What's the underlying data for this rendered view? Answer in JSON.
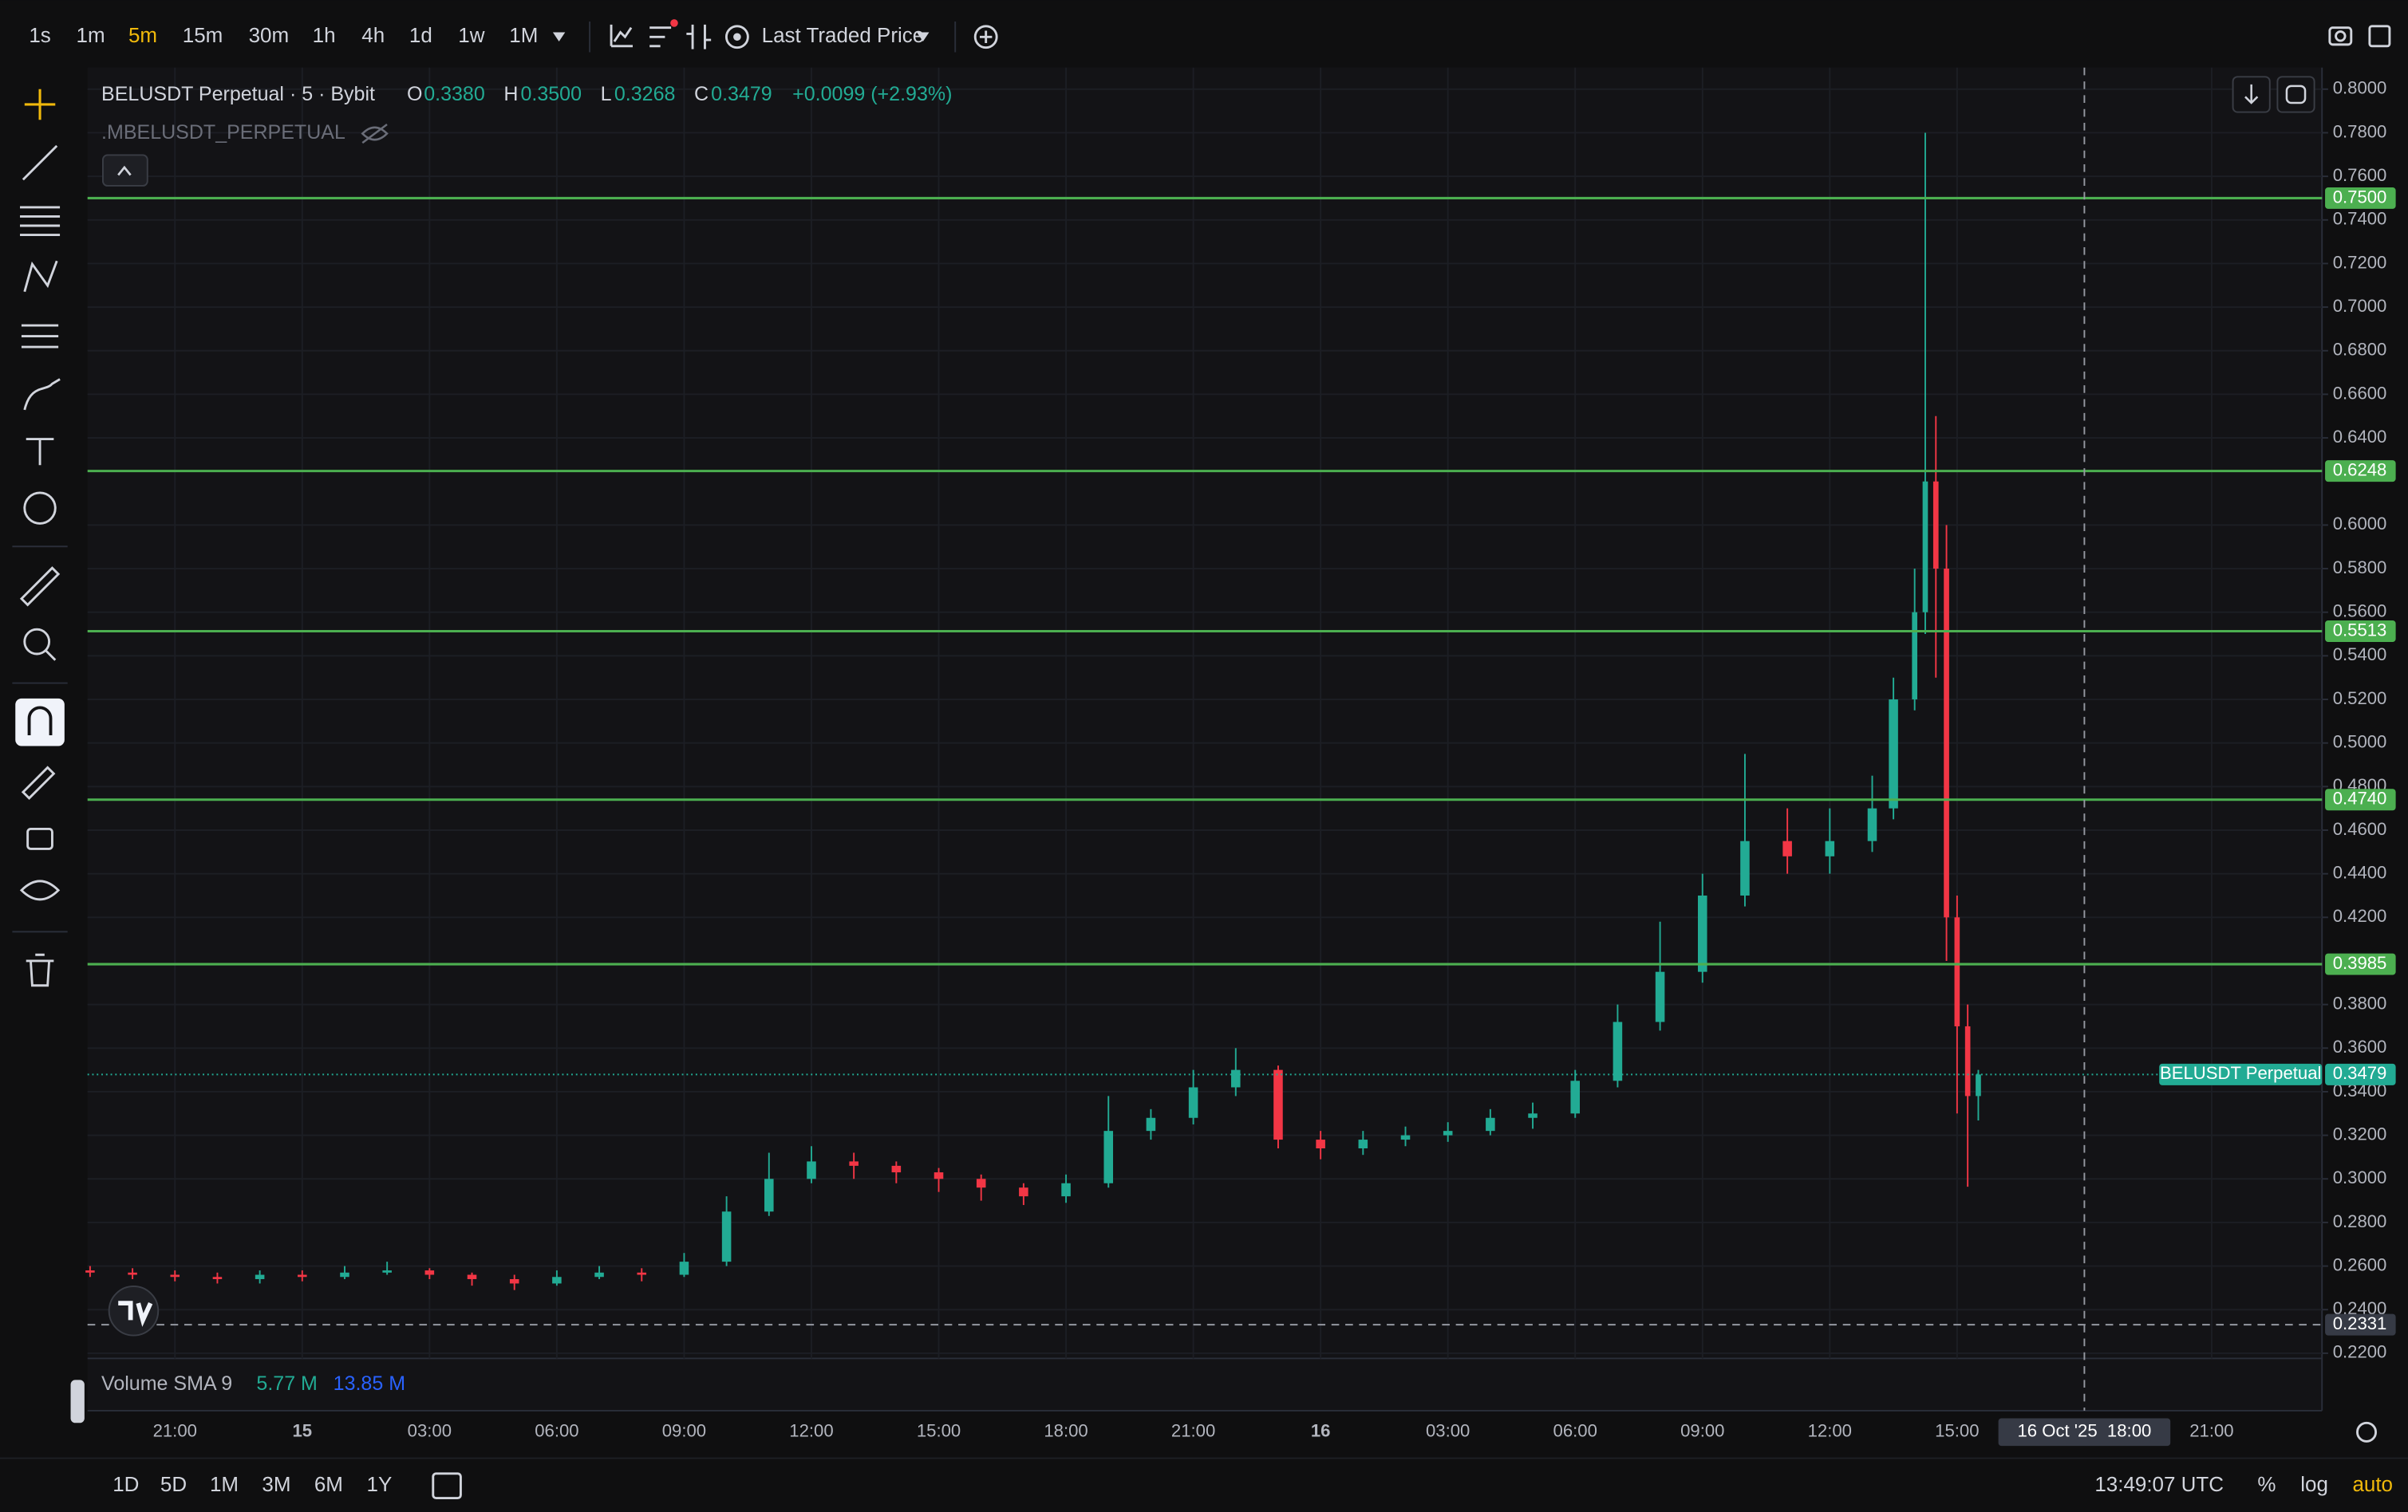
{
  "ui": {
    "intervals": [
      "1s",
      "1m",
      "5m",
      "15m",
      "30m",
      "1h",
      "4h",
      "1d",
      "1w",
      "1M"
    ],
    "price_source": "Last Traded Price",
    "symbol": "BELUSDT Perpetual · 5 · Bybit",
    "ohlc": [
      {
        "key": "O",
        "value": "0.3380"
      },
      {
        "key": "H",
        "value": "0.3500"
      },
      {
        "key": "L",
        "value": "0.3268"
      },
      {
        "key": "C",
        "value": "0.3479"
      }
    ],
    "change": "+0.0099 (+2.93%)",
    "indicator": ".MBELUSDT_PERPETUAL",
    "volume": {
      "name": "Volume SMA 9",
      "values": [
        "5.77 M",
        "13.85 M"
      ]
    },
    "ranges": [
      "1D",
      "5D",
      "1M",
      "3M",
      "6M",
      "1Y"
    ],
    "clock": "13:49:07 UTC",
    "scale_options": [
      "%",
      "log",
      "auto"
    ]
  },
  "chart_data": {
    "type": "candlestick",
    "up_color": "#22ab94",
    "down_color": "#f23645",
    "grid": true,
    "x": [
      19,
      20,
      21,
      22,
      23,
      24,
      25,
      26,
      27,
      28,
      29,
      30,
      31,
      32,
      33,
      34,
      35,
      36,
      37,
      38,
      39,
      40,
      41,
      42,
      43,
      44,
      45,
      46,
      47,
      48,
      49,
      50,
      51,
      52,
      53,
      54,
      55,
      56,
      57,
      58,
      59,
      60,
      61,
      61.5,
      62,
      62.25,
      62.5,
      62.75,
      63,
      63.25,
      63.5
    ],
    "open": [
      0.258,
      0.257,
      0.256,
      0.255,
      0.254,
      0.256,
      0.255,
      0.257,
      0.258,
      0.256,
      0.254,
      0.252,
      0.255,
      0.257,
      0.256,
      0.262,
      0.285,
      0.3,
      0.308,
      0.306,
      0.303,
      0.3,
      0.296,
      0.292,
      0.298,
      0.322,
      0.328,
      0.342,
      0.35,
      0.318,
      0.314,
      0.318,
      0.32,
      0.322,
      0.328,
      0.33,
      0.345,
      0.372,
      0.395,
      0.43,
      0.455,
      0.448,
      0.455,
      0.47,
      0.52,
      0.56,
      0.62,
      0.58,
      0.42,
      0.37,
      0.338
    ],
    "high": [
      0.26,
      0.259,
      0.258,
      0.257,
      0.258,
      0.258,
      0.26,
      0.262,
      0.259,
      0.257,
      0.256,
      0.258,
      0.26,
      0.259,
      0.266,
      0.292,
      0.312,
      0.315,
      0.312,
      0.308,
      0.305,
      0.302,
      0.298,
      0.302,
      0.338,
      0.332,
      0.35,
      0.36,
      0.352,
      0.322,
      0.322,
      0.324,
      0.326,
      0.332,
      0.335,
      0.35,
      0.38,
      0.418,
      0.44,
      0.495,
      0.47,
      0.47,
      0.485,
      0.53,
      0.58,
      0.78,
      0.65,
      0.6,
      0.43,
      0.38,
      0.35
    ],
    "low": [
      0.255,
      0.254,
      0.253,
      0.252,
      0.252,
      0.253,
      0.254,
      0.256,
      0.254,
      0.251,
      0.249,
      0.251,
      0.254,
      0.253,
      0.255,
      0.26,
      0.283,
      0.298,
      0.3,
      0.298,
      0.294,
      0.29,
      0.288,
      0.289,
      0.296,
      0.318,
      0.325,
      0.338,
      0.314,
      0.309,
      0.311,
      0.315,
      0.317,
      0.32,
      0.323,
      0.328,
      0.342,
      0.368,
      0.39,
      0.425,
      0.44,
      0.44,
      0.45,
      0.465,
      0.515,
      0.55,
      0.53,
      0.4,
      0.33,
      0.2964,
      0.3268
    ],
    "close": [
      0.257,
      0.256,
      0.255,
      0.254,
      0.256,
      0.255,
      0.257,
      0.258,
      0.256,
      0.254,
      0.252,
      0.255,
      0.257,
      0.256,
      0.262,
      0.285,
      0.3,
      0.308,
      0.306,
      0.303,
      0.3,
      0.296,
      0.292,
      0.298,
      0.322,
      0.328,
      0.342,
      0.35,
      0.318,
      0.314,
      0.318,
      0.32,
      0.322,
      0.328,
      0.33,
      0.345,
      0.372,
      0.395,
      0.43,
      0.455,
      0.448,
      0.455,
      0.47,
      0.52,
      0.56,
      0.62,
      0.58,
      0.42,
      0.37,
      0.338,
      0.3479
    ],
    "xlim": [
      18.94,
      71.6
    ],
    "ylim": [
      0.2176,
      0.8099
    ],
    "xticks": [
      {
        "value": 21,
        "label": "21:00"
      },
      {
        "value": 24,
        "label": "15"
      },
      {
        "value": 27,
        "label": "03:00"
      },
      {
        "value": 30,
        "label": "06:00"
      },
      {
        "value": 33,
        "label": "09:00"
      },
      {
        "value": 36,
        "label": "12:00"
      },
      {
        "value": 39,
        "label": "15:00"
      },
      {
        "value": 42,
        "label": "18:00"
      },
      {
        "value": 45,
        "label": "21:00"
      },
      {
        "value": 48,
        "label": "16"
      },
      {
        "value": 51,
        "label": "03:00"
      },
      {
        "value": 54,
        "label": "06:00"
      },
      {
        "value": 57,
        "label": "09:00"
      },
      {
        "value": 60,
        "label": "12:00"
      },
      {
        "value": 63,
        "label": "15:00"
      },
      {
        "value": 69,
        "label": "21:00"
      }
    ],
    "yticks": [
      {
        "value": 0.22,
        "label": "0.2200"
      },
      {
        "value": 0.24,
        "label": "0.2400"
      },
      {
        "value": 0.26,
        "label": "0.2600"
      },
      {
        "value": 0.28,
        "label": "0.2800"
      },
      {
        "value": 0.3,
        "label": "0.3000"
      },
      {
        "value": 0.32,
        "label": "0.3200"
      },
      {
        "value": 0.34,
        "label": "0.3400"
      },
      {
        "value": 0.36,
        "label": "0.3600"
      },
      {
        "value": 0.38,
        "label": "0.3800"
      },
      {
        "value": 0.42,
        "label": "0.4200"
      },
      {
        "value": 0.44,
        "label": "0.4400"
      },
      {
        "value": 0.46,
        "label": "0.4600"
      },
      {
        "value": 0.48,
        "label": "0.4800"
      },
      {
        "value": 0.5,
        "label": "0.5000"
      },
      {
        "value": 0.52,
        "label": "0.5200"
      },
      {
        "value": 0.54,
        "label": "0.5400"
      },
      {
        "value": 0.56,
        "label": "0.5600"
      },
      {
        "value": 0.58,
        "label": "0.5800"
      },
      {
        "value": 0.6,
        "label": "0.6000"
      },
      {
        "value": 0.64,
        "label": "0.6400"
      },
      {
        "value": 0.66,
        "label": "0.6600"
      },
      {
        "value": 0.68,
        "label": "0.6800"
      },
      {
        "value": 0.7,
        "label": "0.7000"
      },
      {
        "value": 0.72,
        "label": "0.7200"
      },
      {
        "value": 0.74,
        "label": "0.7400"
      },
      {
        "value": 0.76,
        "label": "0.7600"
      },
      {
        "value": 0.78,
        "label": "0.7800"
      },
      {
        "value": 0.8,
        "label": "0.8000"
      }
    ],
    "levels": {
      "color": "#4caf50",
      "values": [
        0.75,
        0.6248,
        0.5513,
        0.474,
        0.3985
      ],
      "value_labels": [
        "0.7500",
        "0.6248",
        "0.5513",
        "0.4740",
        "0.3985"
      ]
    },
    "last_price": {
      "name": "BELUSDT Perpetual",
      "value": 0.3479
    },
    "marker": 0.2331,
    "crosshair": {
      "value": 66,
      "label": "16 Oct '25  18:00"
    }
  }
}
